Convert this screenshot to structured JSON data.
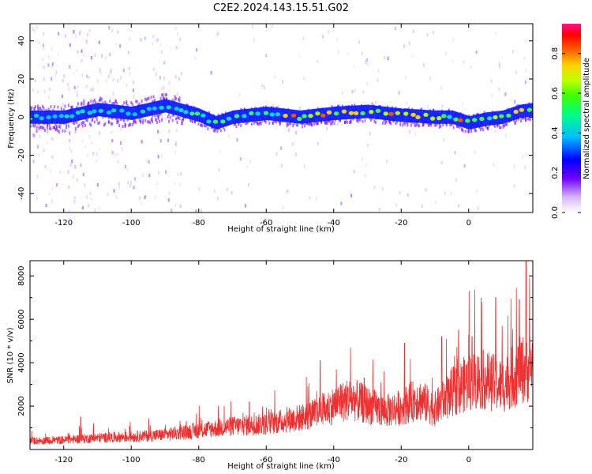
{
  "title": "C2E2.2024.143.15.51.G02",
  "chart_data": [
    {
      "type": "heatmap",
      "title": "",
      "xlabel": "Height of straight line (km)",
      "ylabel": "Frequency (Hz)",
      "xlim": [
        -130,
        19
      ],
      "ylim": [
        -50,
        49
      ],
      "x_ticks": [
        -120,
        -100,
        -80,
        -60,
        -40,
        -20,
        0
      ],
      "y_ticks": [
        -40,
        -20,
        0,
        20,
        40
      ],
      "ridge_frequency": {
        "x": [
          -120,
          -110,
          -100,
          -90,
          -80,
          -75,
          -70,
          -60,
          -50,
          -40,
          -30,
          -20,
          -10,
          -5,
          0,
          5,
          10,
          15,
          19
        ],
        "y": [
          0,
          4,
          2,
          6,
          1,
          -3,
          0,
          2,
          0,
          2,
          3,
          1,
          0,
          0,
          -3,
          -1,
          0,
          3,
          4
        ]
      },
      "colorbar": {
        "label": "Normalized spectral amplitude",
        "range": [
          0.0,
          0.95
        ],
        "ticks": [
          0.0,
          0.2,
          0.4,
          0.6,
          0.8
        ]
      }
    },
    {
      "type": "line",
      "title": "",
      "xlabel": "Height of straight line (km)",
      "ylabel": "SNR (10 * v/v)",
      "xlim": [
        -130,
        19
      ],
      "ylim": [
        0,
        8700
      ],
      "x_ticks": [
        -120,
        -100,
        -80,
        -60,
        -40,
        -20,
        0
      ],
      "y_ticks": [
        2000,
        4000,
        6000,
        8000
      ],
      "series": [
        {
          "color": "#f03030",
          "x": [
            -130,
            -120,
            -115,
            -110,
            -100,
            -90,
            -80,
            -70,
            -60,
            -50,
            -45,
            -40,
            -35,
            -30,
            -25,
            -20,
            -15,
            -10,
            -5,
            0,
            5,
            10,
            15,
            19
          ],
          "y": [
            400,
            450,
            500,
            550,
            600,
            700,
            900,
            1100,
            1200,
            1500,
            1700,
            2100,
            2400,
            2100,
            1800,
            2000,
            2400,
            1900,
            2700,
            3200,
            3300,
            3000,
            3700,
            4000
          ]
        }
      ],
      "notable_peaks": {
        "x": [
          -115,
          -65,
          -44,
          -38,
          -31,
          -19,
          -8,
          -3,
          1,
          8,
          15,
          17
        ],
        "y": [
          1500,
          2200,
          4100,
          3000,
          3300,
          4900,
          5200,
          5500,
          5200,
          7000,
          6900,
          8700
        ]
      }
    }
  ]
}
